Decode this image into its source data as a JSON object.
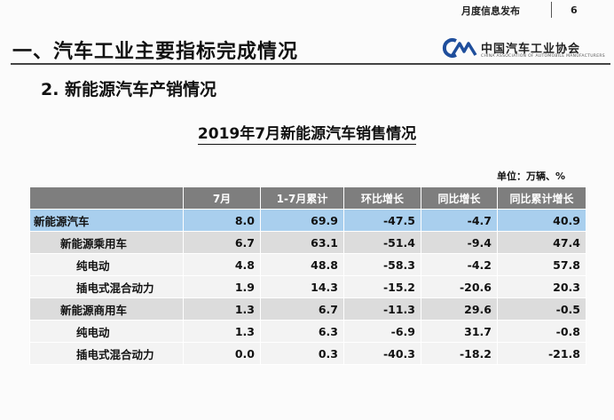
{
  "header": {
    "publication": "月度信息发布",
    "page_number": "6"
  },
  "slide": {
    "title": "一、汽车工业主要指标完成情况",
    "subtitle": "2. 新能源汽车产销情况"
  },
  "logo": {
    "mark": "CAAM",
    "name": "中国汽车工业协会",
    "english": "CHINA ASSOCIATION OF AUTOMOBILE MANUFACTURERS",
    "color": "#1f4e9c"
  },
  "table": {
    "title": "2019年7月新能源汽车销售情况",
    "unit": "单位：万辆、%",
    "headers": [
      "",
      "7月",
      "1-7月累计",
      "环比增长",
      "同比增长",
      "同比累计增长"
    ],
    "rows": [
      {
        "name": "新能源汽车",
        "values": [
          "8.0",
          "69.9",
          "-47.5",
          "-4.7",
          "40.9"
        ]
      },
      {
        "name": "新能源乘用车",
        "values": [
          "6.7",
          "63.1",
          "-51.4",
          "-9.4",
          "47.4"
        ]
      },
      {
        "name": "纯电动",
        "values": [
          "4.8",
          "48.8",
          "-58.3",
          "-4.2",
          "57.8"
        ]
      },
      {
        "name": "插电式混合动力",
        "values": [
          "1.9",
          "14.3",
          "-15.2",
          "-20.6",
          "20.3"
        ]
      },
      {
        "name": "新能源商用车",
        "values": [
          "1.3",
          "6.7",
          "-11.3",
          "29.6",
          "-0.5"
        ]
      },
      {
        "name": "纯电动",
        "values": [
          "1.3",
          "6.3",
          "-6.9",
          "31.7",
          "-0.8"
        ]
      },
      {
        "name": "插电式混合动力",
        "values": [
          "0.0",
          "0.3",
          "-40.3",
          "-18.2",
          "-21.8"
        ]
      }
    ],
    "colors": {
      "header": "#7e7e7e",
      "total_row": "#a9cfee",
      "category_row": "#dcdcdc",
      "sub_row": "#f3f3f3"
    }
  }
}
